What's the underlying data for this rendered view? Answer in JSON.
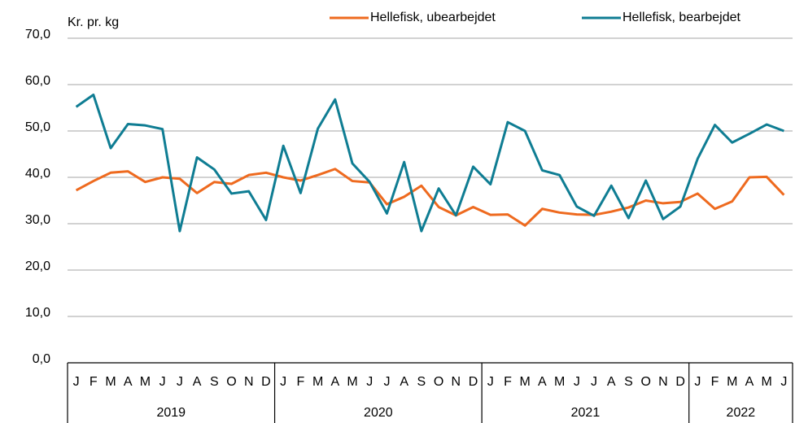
{
  "chart_data": {
    "type": "line",
    "y_label": "Kr. pr. kg",
    "categories": [
      "J",
      "F",
      "M",
      "A",
      "M",
      "J",
      "J",
      "A",
      "S",
      "O",
      "N",
      "D",
      "J",
      "F",
      "M",
      "A",
      "M",
      "J",
      "J",
      "A",
      "S",
      "O",
      "N",
      "D",
      "J",
      "F",
      "M",
      "A",
      "M",
      "J",
      "J",
      "A",
      "S",
      "O",
      "N",
      "D",
      "J",
      "F",
      "M",
      "A",
      "M",
      "J"
    ],
    "x_groups": [
      "2019",
      "2020",
      "2021",
      "2022"
    ],
    "series": [
      {
        "name": "Hellefisk, ubearbejdet",
        "color": "#ee6a1f",
        "values": [
          37.2,
          39.2,
          41.0,
          41.3,
          39.0,
          40.0,
          39.7,
          36.6,
          39.0,
          38.6,
          40.5,
          41.0,
          40.0,
          39.3,
          40.5,
          41.8,
          39.2,
          38.9,
          34.2,
          35.8,
          38.2,
          33.6,
          31.8,
          33.6,
          31.9,
          32.0,
          29.6,
          33.2,
          32.4,
          32.0,
          31.9,
          32.6,
          33.5,
          35.0,
          34.4,
          34.7,
          36.5,
          33.2,
          34.8,
          40.0,
          40.1,
          36.2
        ]
      },
      {
        "name": "Hellefisk, bearbejdet",
        "color": "#0f7d93",
        "values": [
          55.2,
          57.8,
          46.3,
          51.5,
          51.2,
          50.4,
          28.4,
          44.3,
          41.7,
          36.5,
          37.0,
          30.8,
          46.8,
          36.6,
          50.5,
          56.8,
          43.0,
          39.0,
          32.2,
          43.3,
          28.4,
          37.6,
          31.8,
          42.3,
          38.5,
          51.9,
          50.0,
          41.5,
          40.5,
          33.7,
          31.7,
          38.2,
          31.2,
          39.3,
          31.0,
          33.7,
          44.0,
          51.3,
          47.5,
          49.4,
          51.4,
          50.0
        ]
      }
    ],
    "ylim": [
      0,
      70
    ],
    "yticks": [
      {
        "value": 0,
        "label": "0,0"
      },
      {
        "value": 10,
        "label": "10,0"
      },
      {
        "value": 20,
        "label": "20,0"
      },
      {
        "value": 30,
        "label": "30,0"
      },
      {
        "value": 40,
        "label": "40,0"
      },
      {
        "value": 50,
        "label": "50,0"
      },
      {
        "value": 60,
        "label": "60,0"
      },
      {
        "value": 70,
        "label": "70,0"
      }
    ],
    "grid": true
  }
}
